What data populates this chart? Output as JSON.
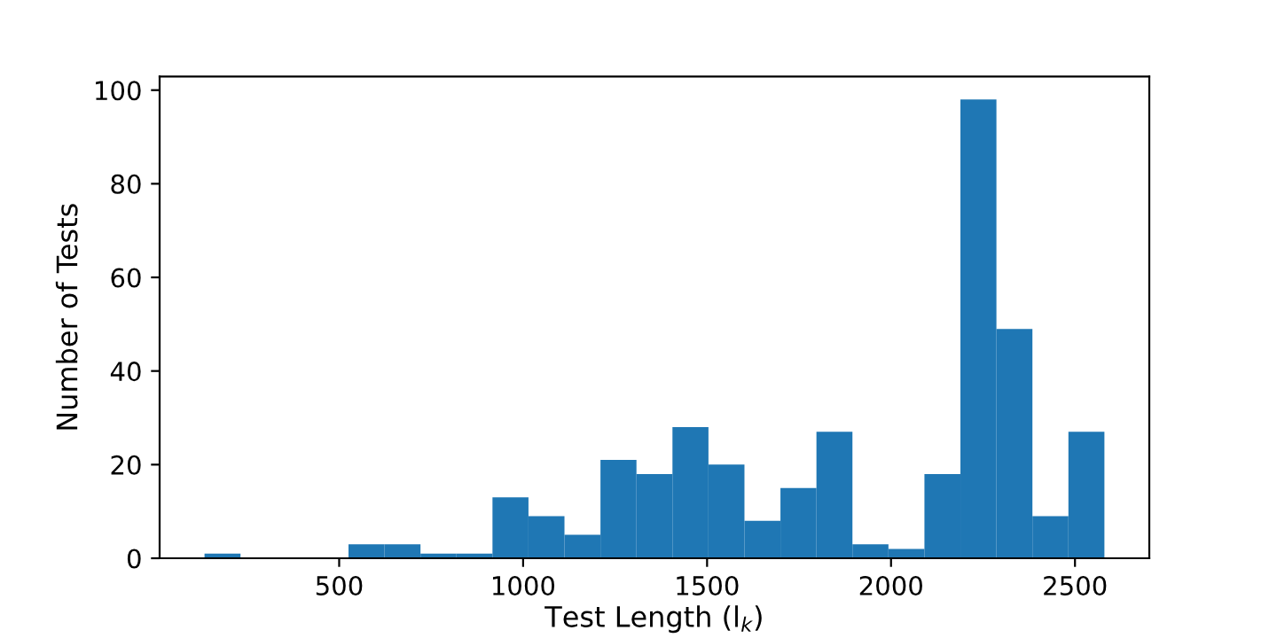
{
  "chart_data": {
    "type": "histogram",
    "xlabel": "Test Length (l$_{k}$)",
    "ylabel": "Number of Tests",
    "bins": [
      134,
      231.84,
      329.68,
      427.52,
      525.36,
      623.2,
      721.04,
      818.88,
      916.72,
      1014.56,
      1112.4,
      1210.24,
      1308.08,
      1405.92,
      1503.76,
      1601.6,
      1699.44,
      1797.28,
      1895.12,
      1992.96,
      2090.8,
      2188.64,
      2286.48,
      2384.32,
      2482.16,
      2580
    ],
    "values": [
      1,
      0,
      0,
      0,
      3,
      3,
      1,
      1,
      13,
      9,
      5,
      21,
      18,
      28,
      20,
      8,
      15,
      27,
      3,
      2,
      18,
      98,
      49,
      9,
      27
    ],
    "color": "#1f77b4",
    "xlim": [
      12,
      2702
    ],
    "xticks": [
      500,
      1000,
      1500,
      2000,
      2500
    ],
    "ylim": [
      0,
      102.9
    ],
    "yticks": [
      0,
      20,
      40,
      60,
      80,
      100
    ],
    "grid": false
  }
}
